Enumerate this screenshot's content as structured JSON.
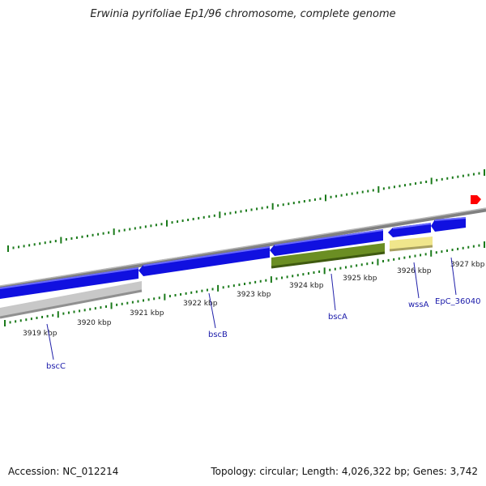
{
  "title": "Erwinia pyrifoliae Ep1/96 chromosome, complete genome",
  "footer": {
    "accession": "Accession: NC_012214",
    "summary": "Topology: circular; Length: 4,026,322 bp; Genes: 3,742"
  },
  "kbp_labels": [
    "3919 kbp",
    "3920 kbp",
    "3921 kbp",
    "3922 kbp",
    "3923 kbp",
    "3924 kbp",
    "3925 kbp",
    "3926 kbp",
    "3927 kbp"
  ],
  "genes": [
    {
      "name": "bscC",
      "color": "#c0c0c0",
      "strand": "reverse"
    },
    {
      "name": "bscB",
      "color": "#1010e0",
      "strand": "reverse"
    },
    {
      "name": "bscA",
      "color": "#6b8e23",
      "strand": "reverse"
    },
    {
      "name": "wssA",
      "color": "#f0e68c",
      "strand": "reverse"
    },
    {
      "name": "EpC_36040",
      "color": "#1010e0",
      "strand": "reverse"
    }
  ],
  "colors": {
    "tick": "#1a7a1a",
    "backbone": "#808080",
    "label": "#1a1aaa",
    "marker": "#ff0000"
  }
}
